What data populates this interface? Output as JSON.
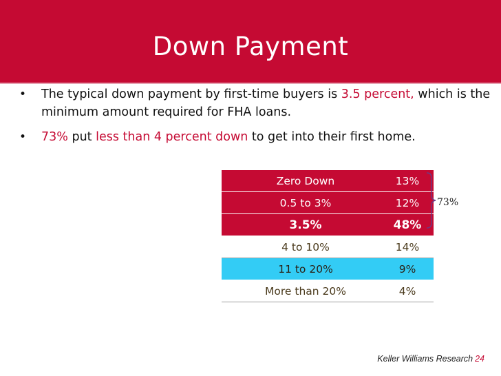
{
  "slide": {
    "title": "Down Payment",
    "bullets": [
      {
        "parts": [
          {
            "text": "The typical down payment by first-time buyers is ",
            "highlight": false
          },
          {
            "text": "3.5 percent,",
            "highlight": true
          },
          {
            "text": " which is the minimum amount required for FHA loans.",
            "highlight": false
          }
        ]
      },
      {
        "parts": [
          {
            "text": "73%",
            "highlight": true
          },
          {
            "text": " put ",
            "highlight": false
          },
          {
            "text": "less than 4 percent down",
            "highlight": true
          },
          {
            "text": " to get into their first home.",
            "highlight": false
          }
        ]
      }
    ],
    "table": {
      "rows": [
        {
          "label": "Zero Down",
          "value": "13%",
          "style": "red"
        },
        {
          "label": "0.5 to 3%",
          "value": "12%",
          "style": "red"
        },
        {
          "label": "3.5%",
          "value": "48%",
          "style": "red-bold"
        },
        {
          "label": "4 to 10%",
          "value": "14%",
          "style": "plain"
        },
        {
          "label": "11 to 20%",
          "value": "9%",
          "style": "cyan"
        },
        {
          "label": "More than 20%",
          "value": "4%",
          "style": "plain"
        }
      ]
    },
    "brace_label": "73%",
    "footer": {
      "source": "Keller Williams Research",
      "page_number": "24"
    },
    "colors": {
      "accent": "#c50a33",
      "highlight_row": "#33ccf5"
    }
  }
}
